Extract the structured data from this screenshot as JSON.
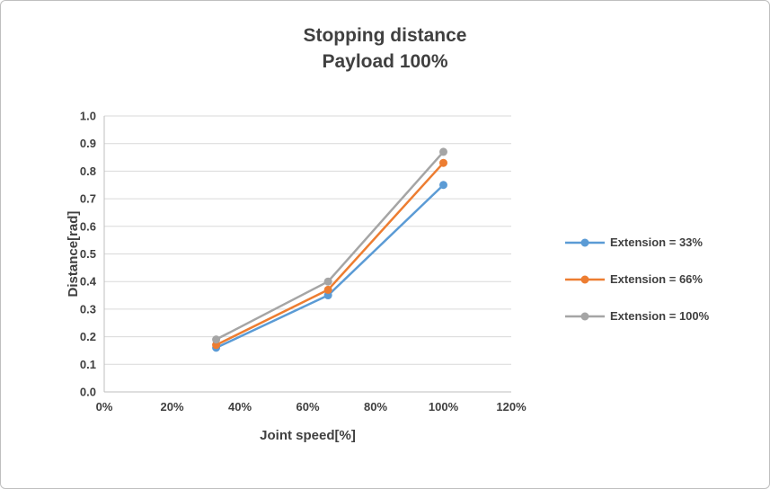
{
  "chart_data": {
    "type": "line",
    "title": "Stopping distance",
    "subtitle": "Payload 100%",
    "xlabel": "Joint speed[%]",
    "ylabel": "Distance[rad]",
    "x": [
      33,
      66,
      100
    ],
    "series": [
      {
        "name": "Extension = 33%",
        "color": "#5B9BD5",
        "values": [
          0.16,
          0.35,
          0.75
        ]
      },
      {
        "name": "Extension = 66%",
        "color": "#ED7D31",
        "values": [
          0.17,
          0.37,
          0.83
        ]
      },
      {
        "name": "Extension = 100%",
        "color": "#A5A5A5",
        "values": [
          0.19,
          0.4,
          0.87
        ]
      }
    ],
    "xlim": [
      0,
      120
    ],
    "ylim": [
      0.0,
      1.0
    ],
    "x_ticks": [
      0,
      20,
      40,
      60,
      80,
      100,
      120
    ],
    "x_tick_labels": [
      "0%",
      "20%",
      "40%",
      "60%",
      "80%",
      "100%",
      "120%"
    ],
    "y_ticks": [
      0.0,
      0.1,
      0.2,
      0.3,
      0.4,
      0.5,
      0.6,
      0.7,
      0.8,
      0.9,
      1.0
    ],
    "y_tick_labels": [
      "0.0",
      "0.1",
      "0.2",
      "0.3",
      "0.4",
      "0.5",
      "0.6",
      "0.7",
      "0.8",
      "0.9",
      "1.0"
    ],
    "grid": "horizontal",
    "legend_position": "right",
    "colors": {
      "text": "#404040",
      "gridline": "#D9D9D9",
      "axis_line": "#BFBFBF"
    }
  }
}
